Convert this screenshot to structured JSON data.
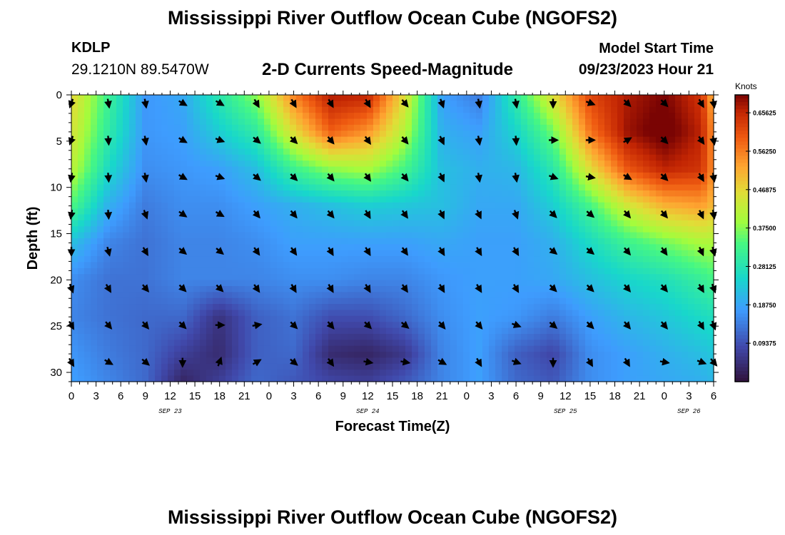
{
  "header": {
    "title": "Mississippi River Outflow Ocean Cube (NGOFS2)",
    "station_id": "KDLP",
    "station_coords": "29.1210N  89.5470W",
    "product": "2-D Currents Speed-Magnitude",
    "model_start_label": "Model Start Time",
    "model_start_value": "09/23/2023 Hour 21"
  },
  "footer": {
    "title": "Mississippi River Outflow Ocean Cube (NGOFS2)"
  },
  "chart_data": {
    "type": "heatmap",
    "title": "2-D Currents Speed-Magnitude",
    "xlabel": "Forecast Time(Z)",
    "ylabel": "Depth (ft)",
    "x_tick_labels": [
      "0",
      "3",
      "6",
      "9",
      "12",
      "15",
      "18",
      "21",
      "0",
      "3",
      "6",
      "9",
      "12",
      "15",
      "18",
      "21",
      "0",
      "3",
      "6",
      "9",
      "12",
      "15",
      "18",
      "21",
      "0",
      "3",
      "6"
    ],
    "x_range_hours": [
      0,
      78
    ],
    "date_labels": [
      {
        "label": "SEP 23",
        "hour": 12
      },
      {
        "label": "SEP 24",
        "hour": 36
      },
      {
        "label": "SEP 25",
        "hour": 60
      },
      {
        "label": "SEP 26",
        "hour": 75
      }
    ],
    "y_ticks": [
      0,
      5,
      10,
      15,
      20,
      25,
      30
    ],
    "y_range": [
      0,
      31
    ],
    "y_inverted": true,
    "colorbar": {
      "unit": "Knots",
      "range": [
        0.0,
        0.7
      ],
      "tick_values": [
        0.09375,
        0.1875,
        0.28125,
        0.375,
        0.46875,
        0.5625,
        0.65625
      ],
      "tick_labels": [
        "0.09375",
        "0.18750",
        "0.28125",
        "0.37500",
        "0.46875",
        "0.56250",
        "0.65625"
      ]
    },
    "speed_knots": {
      "hours": [
        0,
        4.5,
        9,
        13.5,
        18,
        22.5,
        27,
        31.5,
        36,
        40.5,
        45,
        49.5,
        54,
        58.5,
        63,
        67.5,
        72,
        76.5,
        78
      ],
      "depths_ft": [
        0,
        4,
        8,
        12,
        16,
        20,
        24,
        28,
        31
      ],
      "values": [
        [
          0.47,
          0.32,
          0.17,
          0.19,
          0.29,
          0.38,
          0.56,
          0.67,
          0.66,
          0.46,
          0.18,
          0.14,
          0.3,
          0.46,
          0.62,
          0.67,
          0.7,
          0.64,
          0.5
        ],
        [
          0.45,
          0.3,
          0.17,
          0.18,
          0.24,
          0.3,
          0.46,
          0.59,
          0.54,
          0.41,
          0.2,
          0.18,
          0.25,
          0.36,
          0.57,
          0.68,
          0.72,
          0.66,
          0.54
        ],
        [
          0.42,
          0.26,
          0.16,
          0.17,
          0.18,
          0.22,
          0.32,
          0.38,
          0.4,
          0.33,
          0.22,
          0.2,
          0.21,
          0.29,
          0.46,
          0.6,
          0.66,
          0.64,
          0.54
        ],
        [
          0.34,
          0.2,
          0.14,
          0.16,
          0.16,
          0.18,
          0.2,
          0.22,
          0.24,
          0.23,
          0.22,
          0.19,
          0.19,
          0.24,
          0.33,
          0.44,
          0.51,
          0.53,
          0.5
        ],
        [
          0.22,
          0.15,
          0.13,
          0.15,
          0.15,
          0.16,
          0.18,
          0.18,
          0.18,
          0.18,
          0.19,
          0.18,
          0.18,
          0.2,
          0.26,
          0.32,
          0.36,
          0.4,
          0.4
        ],
        [
          0.16,
          0.13,
          0.13,
          0.15,
          0.15,
          0.15,
          0.16,
          0.16,
          0.15,
          0.15,
          0.17,
          0.18,
          0.18,
          0.19,
          0.22,
          0.25,
          0.27,
          0.31,
          0.33
        ],
        [
          0.15,
          0.13,
          0.12,
          0.12,
          0.05,
          0.11,
          0.13,
          0.09,
          0.09,
          0.12,
          0.16,
          0.18,
          0.17,
          0.14,
          0.18,
          0.21,
          0.23,
          0.26,
          0.27
        ],
        [
          0.17,
          0.14,
          0.12,
          0.07,
          0.04,
          0.11,
          0.12,
          0.04,
          0.03,
          0.06,
          0.15,
          0.18,
          0.11,
          0.08,
          0.16,
          0.18,
          0.2,
          0.22,
          0.23
        ],
        [
          0.18,
          0.15,
          0.12,
          0.03,
          0.07,
          0.12,
          0.1,
          0.08,
          0.07,
          0.1,
          0.15,
          0.18,
          0.12,
          0.1,
          0.16,
          0.18,
          0.19,
          0.2,
          0.21
        ]
      ]
    },
    "vectors": {
      "hours": [
        0,
        4.5,
        9,
        13.5,
        18,
        22.5,
        27,
        31.5,
        36,
        40.5,
        45,
        49.5,
        54,
        58.5,
        63,
        67.5,
        72,
        76.5,
        78
      ],
      "depths_ft": [
        0.5,
        4.5,
        8.5,
        12.5,
        16.5,
        20.5,
        24.5,
        28.5
      ],
      "direction_deg": [
        [
          200,
          170,
          170,
          120,
          120,
          150,
          150,
          150,
          150,
          140,
          160,
          170,
          170,
          180,
          110,
          135,
          135,
          150,
          170
        ],
        [
          200,
          175,
          170,
          120,
          110,
          130,
          135,
          140,
          145,
          140,
          155,
          170,
          175,
          90,
          90,
          60,
          135,
          145,
          170
        ],
        [
          190,
          175,
          170,
          120,
          110,
          130,
          135,
          140,
          145,
          140,
          155,
          170,
          170,
          110,
          100,
          120,
          135,
          150,
          170
        ],
        [
          190,
          175,
          160,
          125,
          120,
          140,
          140,
          140,
          150,
          145,
          155,
          155,
          160,
          135,
          130,
          140,
          140,
          155,
          170
        ],
        [
          180,
          165,
          150,
          130,
          130,
          145,
          145,
          150,
          150,
          145,
          150,
          150,
          150,
          130,
          130,
          140,
          145,
          155,
          165
        ],
        [
          160,
          150,
          140,
          135,
          135,
          145,
          150,
          150,
          150,
          145,
          150,
          150,
          150,
          135,
          135,
          140,
          140,
          150,
          160
        ],
        [
          150,
          140,
          140,
          135,
          90,
          80,
          135,
          140,
          135,
          130,
          140,
          140,
          110,
          130,
          135,
          140,
          140,
          150,
          160
        ],
        [
          150,
          120,
          130,
          180,
          20,
          60,
          130,
          145,
          100,
          100,
          120,
          150,
          110,
          180,
          150,
          150,
          100,
          110,
          140
        ]
      ]
    }
  }
}
